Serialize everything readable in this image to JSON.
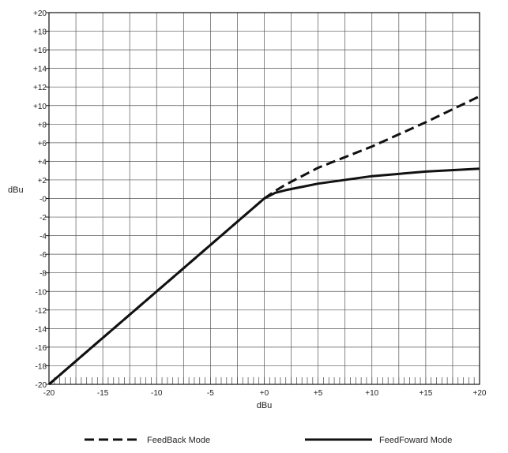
{
  "chart_data": {
    "type": "line",
    "xlabel": "dBu",
    "ylabel": "dBu",
    "xlim": [
      -20,
      20
    ],
    "ylim": [
      -20,
      20
    ],
    "x_ticks": [
      -20,
      -15,
      -10,
      -5,
      0,
      5,
      10,
      15,
      20
    ],
    "x_tick_labels": [
      "-20",
      "-15",
      "-10",
      "-5",
      "+0",
      "+5",
      "+10",
      "+15",
      "+20"
    ],
    "y_ticks": [
      20,
      18,
      16,
      14,
      12,
      10,
      8,
      6,
      4,
      2,
      0,
      -2,
      -4,
      -6,
      -8,
      -10,
      -12,
      -14,
      -16,
      -18,
      -20
    ],
    "y_tick_labels": [
      "+20",
      "+18",
      "+16",
      "+14",
      "+12",
      "+10",
      "+8",
      "+6",
      "+4",
      "+2",
      "-0",
      "-2",
      "-4",
      "-6",
      "-8",
      "-10",
      "-12",
      "-14",
      "-16",
      "-18",
      "-20"
    ],
    "grid": true,
    "legend_position": "bottom",
    "series": [
      {
        "name": "FeedBack Mode",
        "style": "dashed",
        "color": "#111111",
        "points": [
          [
            -20,
            -20
          ],
          [
            -15,
            -15
          ],
          [
            -10,
            -10
          ],
          [
            -5,
            -5
          ],
          [
            -2,
            -2
          ],
          [
            0,
            0
          ],
          [
            1,
            0.8
          ],
          [
            2,
            1.5
          ],
          [
            5,
            3.3
          ],
          [
            10,
            5.6
          ],
          [
            15,
            8.2
          ],
          [
            20,
            11
          ]
        ]
      },
      {
        "name": "FeedFoward Mode",
        "style": "solid",
        "color": "#111111",
        "points": [
          [
            -20,
            -20
          ],
          [
            -15,
            -15
          ],
          [
            -10,
            -10
          ],
          [
            -5,
            -5
          ],
          [
            -2,
            -2
          ],
          [
            0,
            0
          ],
          [
            1,
            0.6
          ],
          [
            2,
            0.9
          ],
          [
            5,
            1.6
          ],
          [
            10,
            2.4
          ],
          [
            15,
            2.9
          ],
          [
            20,
            3.2
          ]
        ]
      }
    ]
  }
}
